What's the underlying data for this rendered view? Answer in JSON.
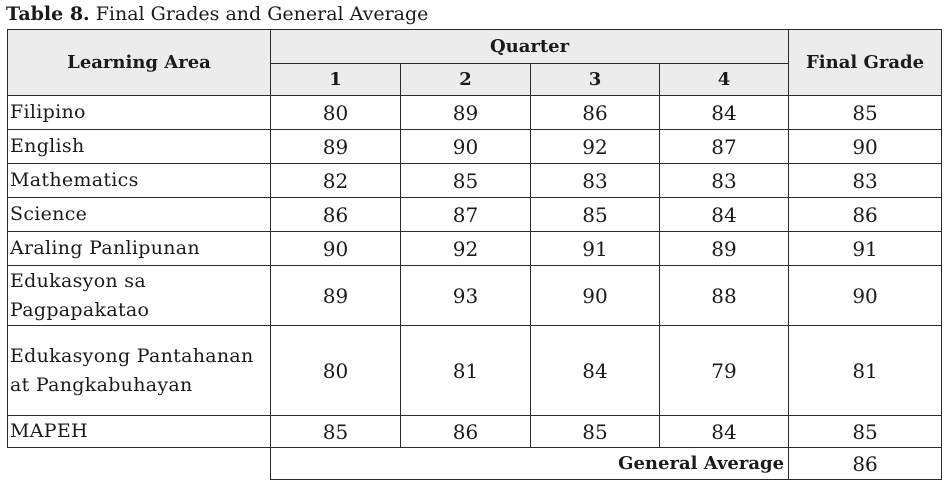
{
  "caption": {
    "label": "Table 8.",
    "title": "Final Grades and General Average"
  },
  "headers": {
    "learning_area": "Learning Area",
    "quarter": "Quarter",
    "q1": "1",
    "q2": "2",
    "q3": "3",
    "q4": "4",
    "final_grade": "Final Grade"
  },
  "rows": [
    {
      "area": "Filipino",
      "q1": "80",
      "q2": "89",
      "q3": "86",
      "q4": "84",
      "final": "85"
    },
    {
      "area": "English",
      "q1": "89",
      "q2": "90",
      "q3": "92",
      "q4": "87",
      "final": "90"
    },
    {
      "area": "Mathematics",
      "q1": "82",
      "q2": "85",
      "q3": "83",
      "q4": "83",
      "final": "83"
    },
    {
      "area": "Science",
      "q1": "86",
      "q2": "87",
      "q3": "85",
      "q4": "84",
      "final": "86"
    },
    {
      "area": "Araling Panlipunan",
      "q1": "90",
      "q2": "92",
      "q3": "91",
      "q4": "89",
      "final": "91"
    },
    {
      "area": "Edukasyon sa Pagpapakatao",
      "q1": "89",
      "q2": "93",
      "q3": "90",
      "q4": "88",
      "final": "90"
    },
    {
      "area": "Edukasyong Pantahanan at Pangkabuhayan",
      "q1": "80",
      "q2": "81",
      "q3": "84",
      "q4": "79",
      "final": "81"
    },
    {
      "area": "MAPEH",
      "q1": "85",
      "q2": "86",
      "q3": "85",
      "q4": "84",
      "final": "85"
    }
  ],
  "general_average": {
    "label": "General Average",
    "value": "86"
  }
}
